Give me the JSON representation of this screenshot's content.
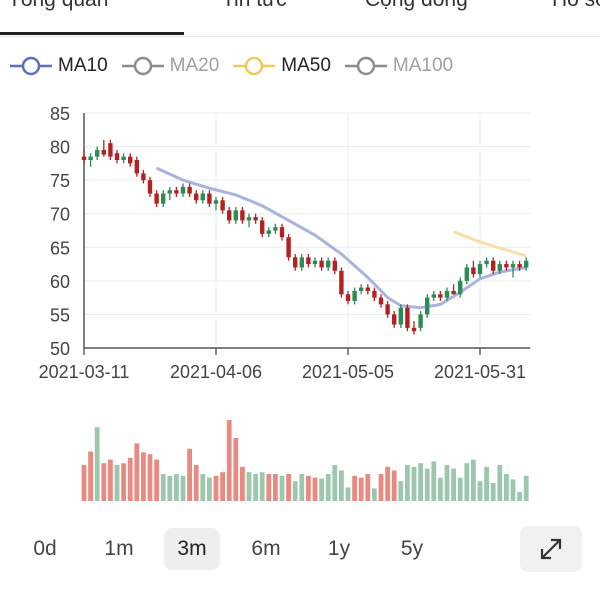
{
  "tabs": [
    {
      "label": "Tổng quan",
      "active": true
    },
    {
      "label": "Tin tức",
      "active": false
    },
    {
      "label": "Cộng đồng",
      "active": false
    },
    {
      "label": "Hồ sơ",
      "active": false
    }
  ],
  "legend": [
    {
      "label": "MA10",
      "color": "#5b6fc2",
      "active": true
    },
    {
      "label": "MA20",
      "color": "#8c8c8c",
      "active": false
    },
    {
      "label": "MA50",
      "color": "#f3c95a",
      "active": true
    },
    {
      "label": "MA100",
      "color": "#8c8c8c",
      "active": false
    }
  ],
  "range_buttons": [
    "0d",
    "1m",
    "3m",
    "6m",
    "1y",
    "5y"
  ],
  "active_range": "3m",
  "expand_icon": "expand-icon",
  "colors": {
    "up": "#2e8b57",
    "down": "#b22222",
    "vol_up": "#9cc7ae",
    "vol_down": "#e88a82",
    "ma10": "#a9b3dd",
    "ma50": "#f7dfa6"
  },
  "chart_data": {
    "type": "candlestick",
    "ylim": [
      50,
      85
    ],
    "yticks": [
      50,
      55,
      60,
      65,
      70,
      75,
      80,
      85
    ],
    "xtick_labels": [
      {
        "label": "2021-03-11",
        "index": 0
      },
      {
        "label": "2021-04-06",
        "index": 20
      },
      {
        "label": "2021-05-05",
        "index": 40
      },
      {
        "label": "2021-05-31",
        "index": 60
      }
    ],
    "candles": [
      [
        78.5,
        79.5,
        77.5,
        78.0
      ],
      [
        78.0,
        79.0,
        77.0,
        78.5
      ],
      [
        78.5,
        80.0,
        78.0,
        79.5
      ],
      [
        79.5,
        81.0,
        78.5,
        78.8
      ],
      [
        80.5,
        81.0,
        78.0,
        78.5
      ],
      [
        79.0,
        79.5,
        77.5,
        78.0
      ],
      [
        78.0,
        79.0,
        77.5,
        78.5
      ],
      [
        78.5,
        79.0,
        77.0,
        77.5
      ],
      [
        78.0,
        78.5,
        75.5,
        76.0
      ],
      [
        76.0,
        76.5,
        74.5,
        75.0
      ],
      [
        75.0,
        75.5,
        72.5,
        73.0
      ],
      [
        73.0,
        73.5,
        71.0,
        71.5
      ],
      [
        71.5,
        73.5,
        71.0,
        73.0
      ],
      [
        73.0,
        74.0,
        72.0,
        73.5
      ],
      [
        73.5,
        74.0,
        72.5,
        73.0
      ],
      [
        73.0,
        74.5,
        72.5,
        74.0
      ],
      [
        74.0,
        74.5,
        72.5,
        73.0
      ],
      [
        73.0,
        73.5,
        71.5,
        72.0
      ],
      [
        72.0,
        73.5,
        71.5,
        73.0
      ],
      [
        73.0,
        73.5,
        71.0,
        71.5
      ],
      [
        71.5,
        72.5,
        70.5,
        72.0
      ],
      [
        72.0,
        72.5,
        70.0,
        70.5
      ],
      [
        70.5,
        71.0,
        68.5,
        69.0
      ],
      [
        69.0,
        71.0,
        68.5,
        70.5
      ],
      [
        70.5,
        71.0,
        68.5,
        69.0
      ],
      [
        69.0,
        70.0,
        68.0,
        69.5
      ],
      [
        69.5,
        70.0,
        68.5,
        69.0
      ],
      [
        69.0,
        69.5,
        66.5,
        67.0
      ],
      [
        67.0,
        68.0,
        66.5,
        67.5
      ],
      [
        67.5,
        68.5,
        67.0,
        68.0
      ],
      [
        68.0,
        68.5,
        66.0,
        66.5
      ],
      [
        66.5,
        67.0,
        63.0,
        63.5
      ],
      [
        63.5,
        64.0,
        61.5,
        62.0
      ],
      [
        62.0,
        64.0,
        61.5,
        63.5
      ],
      [
        63.5,
        64.0,
        62.0,
        62.5
      ],
      [
        62.5,
        63.5,
        62.0,
        63.0
      ],
      [
        63.0,
        63.5,
        61.5,
        62.0
      ],
      [
        62.0,
        63.5,
        61.5,
        63.0
      ],
      [
        63.0,
        63.5,
        61.0,
        61.5
      ],
      [
        61.5,
        62.0,
        57.5,
        58.0
      ],
      [
        58.0,
        58.5,
        56.5,
        57.0
      ],
      [
        57.0,
        59.0,
        56.5,
        58.5
      ],
      [
        58.5,
        59.5,
        58.0,
        59.0
      ],
      [
        59.0,
        59.5,
        58.0,
        58.5
      ],
      [
        58.5,
        59.0,
        57.0,
        57.5
      ],
      [
        57.5,
        58.0,
        56.0,
        56.5
      ],
      [
        56.5,
        57.0,
        54.5,
        55.0
      ],
      [
        55.0,
        55.5,
        53.0,
        53.5
      ],
      [
        53.5,
        56.5,
        53.0,
        56.0
      ],
      [
        56.0,
        56.5,
        52.5,
        53.0
      ],
      [
        53.0,
        54.0,
        52.0,
        52.5
      ],
      [
        53.0,
        55.5,
        52.5,
        55.0
      ],
      [
        55.0,
        58.0,
        54.5,
        57.5
      ],
      [
        57.5,
        58.5,
        57.0,
        58.0
      ],
      [
        58.0,
        58.5,
        57.0,
        57.5
      ],
      [
        57.5,
        59.0,
        57.0,
        58.5
      ],
      [
        58.5,
        59.5,
        58.0,
        58.0
      ],
      [
        58.0,
        60.5,
        57.5,
        60.0
      ],
      [
        60.0,
        62.5,
        59.5,
        62.0
      ],
      [
        62.0,
        63.0,
        60.5,
        61.0
      ],
      [
        61.0,
        63.0,
        60.5,
        62.5
      ],
      [
        62.5,
        63.5,
        62.0,
        63.0
      ],
      [
        63.0,
        63.5,
        61.0,
        61.5
      ],
      [
        61.5,
        63.0,
        61.0,
        62.5
      ],
      [
        62.5,
        63.0,
        61.5,
        62.0
      ],
      [
        62.0,
        63.0,
        60.5,
        62.5
      ],
      [
        62.5,
        63.0,
        61.5,
        62.0
      ],
      [
        62.0,
        63.5,
        61.5,
        63.0
      ]
    ],
    "ma10": [
      [
        11,
        76.8
      ],
      [
        15,
        75.0
      ],
      [
        19,
        73.8
      ],
      [
        23,
        72.8
      ],
      [
        27,
        71.2
      ],
      [
        31,
        69.0
      ],
      [
        35,
        66.8
      ],
      [
        39,
        64.0
      ],
      [
        43,
        60.5
      ],
      [
        46,
        57.5
      ],
      [
        48,
        56.3
      ],
      [
        51,
        56.0
      ],
      [
        54,
        56.5
      ],
      [
        57,
        58.3
      ],
      [
        60,
        60.3
      ],
      [
        63,
        61.3
      ],
      [
        67,
        62.0
      ]
    ],
    "ma50": [
      [
        56,
        67.3
      ],
      [
        60,
        65.8
      ],
      [
        64,
        64.6
      ],
      [
        67,
        63.7
      ]
    ],
    "volume": [
      [
        40,
        0
      ],
      [
        55,
        0
      ],
      [
        82,
        1
      ],
      [
        42,
        0
      ],
      [
        46,
        0
      ],
      [
        40,
        1
      ],
      [
        42,
        0
      ],
      [
        48,
        0
      ],
      [
        64,
        0
      ],
      [
        54,
        0
      ],
      [
        52,
        0
      ],
      [
        46,
        0
      ],
      [
        30,
        1
      ],
      [
        28,
        1
      ],
      [
        30,
        1
      ],
      [
        28,
        1
      ],
      [
        58,
        0
      ],
      [
        40,
        0
      ],
      [
        30,
        1
      ],
      [
        26,
        1
      ],
      [
        28,
        0
      ],
      [
        32,
        0
      ],
      [
        90,
        0
      ],
      [
        70,
        0
      ],
      [
        38,
        0
      ],
      [
        32,
        1
      ],
      [
        30,
        1
      ],
      [
        32,
        1
      ],
      [
        30,
        0
      ],
      [
        30,
        0
      ],
      [
        28,
        1
      ],
      [
        30,
        0
      ],
      [
        22,
        1
      ],
      [
        30,
        1
      ],
      [
        28,
        0
      ],
      [
        26,
        0
      ],
      [
        25,
        1
      ],
      [
        30,
        1
      ],
      [
        40,
        1
      ],
      [
        34,
        1
      ],
      [
        15,
        1
      ],
      [
        28,
        0
      ],
      [
        26,
        0
      ],
      [
        30,
        0
      ],
      [
        14,
        1
      ],
      [
        30,
        0
      ],
      [
        38,
        0
      ],
      [
        34,
        0
      ],
      [
        22,
        1
      ],
      [
        40,
        1
      ],
      [
        38,
        1
      ],
      [
        42,
        1
      ],
      [
        36,
        1
      ],
      [
        44,
        1
      ],
      [
        26,
        1
      ],
      [
        40,
        1
      ],
      [
        36,
        1
      ],
      [
        26,
        1
      ],
      [
        42,
        1
      ],
      [
        46,
        1
      ],
      [
        22,
        1
      ],
      [
        38,
        1
      ],
      [
        20,
        1
      ],
      [
        40,
        1
      ],
      [
        30,
        1
      ],
      [
        24,
        1
      ],
      [
        10,
        1
      ],
      [
        28,
        1
      ]
    ]
  }
}
